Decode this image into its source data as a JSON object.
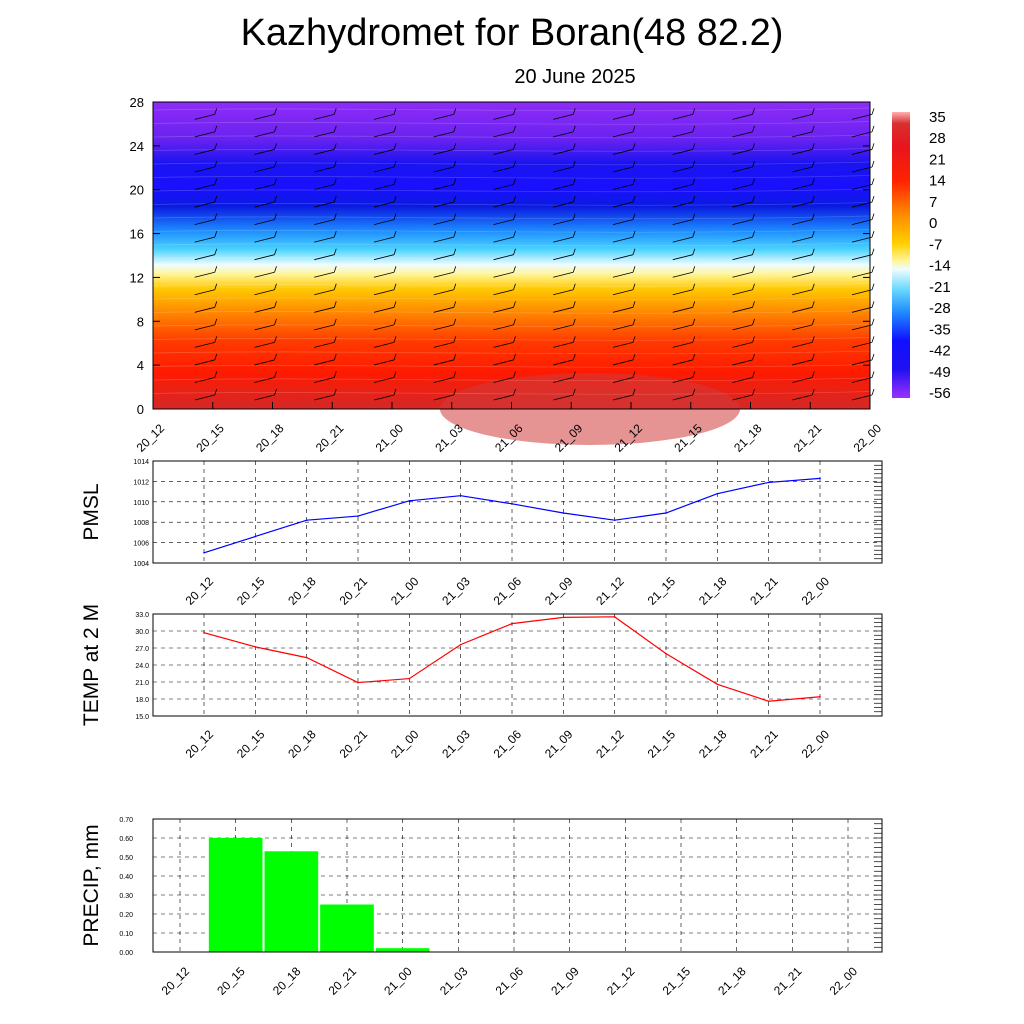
{
  "header": {
    "title": "Kazhydromet for Boran(48 82.2)",
    "subtitle": "20 June 2025"
  },
  "chart_data": [
    {
      "type": "heatmap",
      "name": "cross-section",
      "x_labels": [
        "20_12",
        "20_15",
        "20_18",
        "20_21",
        "21_00",
        "21_03",
        "21_06",
        "21_09",
        "21_12",
        "21_15",
        "21_18",
        "21_21",
        "22_00"
      ],
      "ylim": [
        0,
        28
      ],
      "y_ticks": [
        "0",
        "4",
        "8",
        "12",
        "16",
        "20",
        "24",
        "28"
      ],
      "colorbar_labels": [
        "35",
        "28",
        "21",
        "14",
        "7",
        "0",
        "-7",
        "-14",
        "-21",
        "-28",
        "-35",
        "-42",
        "-49",
        "-56"
      ],
      "color_stops": [
        "#9b30ff",
        "#6b1ee8",
        "#1010ff",
        "#0a1ae0",
        "#1e6aff",
        "#1ec8ff",
        "#eefcff",
        "#fff59a",
        "#ffd000",
        "#ff8c00",
        "#ff3a00",
        "#ff1a00",
        "#e8141e",
        "#d83030"
      ],
      "notes": "temperature field by height with wind barbs"
    },
    {
      "type": "line",
      "ylabel": "PMSL",
      "x": [
        "20_12",
        "20_15",
        "20_18",
        "20_21",
        "21_00",
        "21_03",
        "21_06",
        "21_09",
        "21_12",
        "21_15",
        "21_18",
        "21_21",
        "22_00"
      ],
      "values": [
        1005.0,
        1006.6,
        1008.2,
        1008.6,
        1010.1,
        1010.6,
        1009.8,
        1008.9,
        1008.2,
        1008.9,
        1010.8,
        1011.9,
        1012.3
      ],
      "ylim": [
        1004,
        1014
      ],
      "y_ticks": [
        "1004",
        "1006",
        "1008",
        "1010",
        "1012",
        "1014"
      ],
      "color": "#0000ff"
    },
    {
      "type": "line",
      "ylabel": "TEMP at 2 M",
      "x": [
        "20_12",
        "20_15",
        "20_18",
        "20_21",
        "21_00",
        "21_03",
        "21_06",
        "21_09",
        "21_12",
        "21_15",
        "21_18",
        "21_21",
        "22_00"
      ],
      "values": [
        29.7,
        27.2,
        25.3,
        20.9,
        21.6,
        27.6,
        31.3,
        32.4,
        32.5,
        26.0,
        20.6,
        17.6,
        18.4
      ],
      "ylim": [
        15,
        33
      ],
      "y_ticks": [
        "15.0",
        "18.0",
        "21.0",
        "24.0",
        "27.0",
        "30.0",
        "33.0"
      ],
      "color": "#ff0000"
    },
    {
      "type": "bar",
      "ylabel": "PRECIP, mm",
      "x_labels": [
        "20_12",
        "20_15",
        "20_18",
        "20_21",
        "21_00",
        "21_03",
        "21_06",
        "21_09",
        "21_12",
        "21_15",
        "21_18",
        "21_21",
        "22_00"
      ],
      "bars": [
        {
          "from": "20_12",
          "to": "20_15",
          "value": 0.6
        },
        {
          "from": "20_15",
          "to": "20_18",
          "value": 0.53
        },
        {
          "from": "20_18",
          "to": "20_21",
          "value": 0.25
        },
        {
          "from": "20_21",
          "to": "21_00",
          "value": 0.02
        }
      ],
      "ylim": [
        0,
        0.7
      ],
      "y_ticks": [
        "0.00",
        "0.10",
        "0.20",
        "0.30",
        "0.40",
        "0.50",
        "0.60",
        "0.70"
      ],
      "color": "#00ff00"
    }
  ]
}
